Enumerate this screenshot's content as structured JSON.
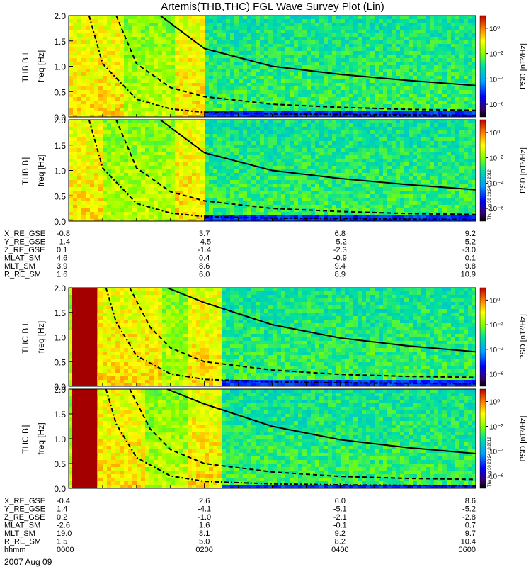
{
  "title": "Artemis(THB,THC) FGL Wave Survey Plot (Lin)",
  "date_label": "2007 Aug 09",
  "freq_label": "freq [Hz]",
  "chart_data": [
    {
      "type": "heatmap",
      "panel": "THB B⊥",
      "ylabel": "THB B⊥",
      "ylim": [
        0,
        2.0
      ],
      "yticks": [
        "0.0",
        "0.5",
        "1.0",
        "1.5",
        "2.0"
      ],
      "time_range": [
        "0000",
        "0600"
      ],
      "colorbar": {
        "label": "PSD [nT²/Hz]",
        "scale": "log",
        "range": [
          1e-06,
          10
        ],
        "ticks": [
          "10⁰",
          "10⁻²",
          "10⁻⁴",
          "10⁻⁶"
        ]
      },
      "bright_bands_hours": [
        [
          0.0,
          0.8
        ],
        [
          1.55,
          1.95
        ]
      ],
      "dense_data_end_hour": 2.0,
      "solid_curve": {
        "hours": [
          1.35,
          2,
          3,
          4,
          5,
          6
        ],
        "freq": [
          2.0,
          1.35,
          1.0,
          0.84,
          0.72,
          0.62
        ]
      },
      "dashed_curve_upper": {
        "hours": [
          0.7,
          1.0,
          1.5,
          2,
          3,
          4,
          5,
          6
        ],
        "freq": [
          2.0,
          1.05,
          0.58,
          0.4,
          0.25,
          0.19,
          0.15,
          0.13
        ]
      },
      "dashdot_curve_lower": {
        "hours": [
          0.3,
          0.5,
          1.0,
          1.5,
          2,
          3,
          4,
          5,
          6
        ],
        "freq": [
          2.0,
          1.05,
          0.35,
          0.16,
          0.09,
          0.06,
          0.05,
          0.04,
          0.03
        ]
      }
    },
    {
      "type": "heatmap",
      "panel": "THB B∥",
      "ylabel": "THB B∥",
      "ylim": [
        0,
        2.0
      ],
      "yticks": [
        "0.0",
        "0.5",
        "1.0",
        "1.5",
        "2.0"
      ],
      "time_range": [
        "0000",
        "0600"
      ],
      "colorbar": {
        "label": "PSD [nT²/Hz]",
        "scale": "log",
        "range": [
          1e-06,
          10
        ],
        "ticks": [
          "10⁰",
          "10⁻²",
          "10⁻⁴",
          "10⁻⁶"
        ]
      },
      "timestamp": "Thu Aug 30 23:24:15 2012",
      "bright_bands_hours": [
        [
          0.0,
          0.5
        ],
        [
          1.55,
          1.95
        ]
      ],
      "dense_data_end_hour": 2.0,
      "solid_curve": {
        "hours": [
          1.35,
          2,
          3,
          4,
          5,
          6
        ],
        "freq": [
          2.0,
          1.35,
          1.0,
          0.84,
          0.72,
          0.62
        ]
      },
      "dashed_curve_upper": {
        "hours": [
          0.7,
          1.0,
          1.5,
          2,
          3,
          4,
          5,
          6
        ],
        "freq": [
          2.0,
          1.05,
          0.58,
          0.4,
          0.25,
          0.19,
          0.15,
          0.13
        ]
      },
      "dashdot_curve_lower": {
        "hours": [
          0.3,
          0.5,
          1.0,
          1.5,
          2,
          3,
          4,
          5,
          6
        ],
        "freq": [
          2.0,
          1.05,
          0.35,
          0.16,
          0.09,
          0.06,
          0.05,
          0.04,
          0.03
        ]
      }
    },
    {
      "type": "heatmap",
      "panel": "THC B⊥",
      "ylabel": "THC B⊥",
      "ylim": [
        0,
        2.0
      ],
      "yticks": [
        "0.0",
        "0.5",
        "1.0",
        "1.5",
        "2.0"
      ],
      "time_range": [
        "0000",
        "0600"
      ],
      "colorbar": {
        "label": "PSD [nT²/Hz]",
        "scale": "log",
        "range": [
          1e-06,
          10
        ],
        "ticks": [
          "10⁰",
          "10⁻²",
          "10⁻⁴",
          "10⁻⁶"
        ]
      },
      "saturated_band_hours": [
        0.05,
        0.42
      ],
      "bright_bands_hours": [
        [
          0.42,
          1.35
        ],
        [
          1.7,
          2.25
        ]
      ],
      "dense_data_end_hour": 2.25,
      "solid_curve": {
        "hours": [
          1.45,
          2,
          3,
          4,
          5,
          6
        ],
        "freq": [
          2.0,
          1.7,
          1.25,
          0.98,
          0.82,
          0.7
        ]
      },
      "dashed_curve_upper": {
        "hours": [
          0.9,
          1.2,
          1.5,
          2,
          3,
          4,
          5,
          6
        ],
        "freq": [
          2.0,
          1.2,
          0.78,
          0.5,
          0.33,
          0.24,
          0.2,
          0.18
        ]
      },
      "dashdot_curve_lower": {
        "hours": [
          0.55,
          0.7,
          1.0,
          1.5,
          2,
          3,
          4,
          5,
          6
        ],
        "freq": [
          2.0,
          1.3,
          0.62,
          0.25,
          0.14,
          0.09,
          0.07,
          0.06,
          0.05
        ]
      }
    },
    {
      "type": "heatmap",
      "panel": "THC B∥",
      "ylabel": "THC B∥",
      "ylim": [
        0,
        2.0
      ],
      "yticks": [
        "0.0",
        "0.5",
        "1.0",
        "1.5",
        "2.0"
      ],
      "time_range": [
        "0000",
        "0600"
      ],
      "colorbar": {
        "label": "PSD [nT²/Hz]",
        "scale": "log",
        "range": [
          1e-06,
          10
        ],
        "ticks": [
          "10⁰",
          "10⁻²",
          "10⁻⁴",
          "10⁻⁶"
        ]
      },
      "timestamp": "Thu Aug 30 23:24:18 2012",
      "saturated_band_hours": [
        0.05,
        0.42
      ],
      "bright_bands_hours": [
        [
          0.42,
          1.1
        ],
        [
          1.7,
          2.25
        ]
      ],
      "dense_data_end_hour": 2.25,
      "solid_curve": {
        "hours": [
          1.45,
          2,
          3,
          4,
          5,
          6
        ],
        "freq": [
          2.0,
          1.7,
          1.25,
          0.98,
          0.82,
          0.7
        ]
      },
      "dashed_curve_upper": {
        "hours": [
          0.9,
          1.2,
          1.5,
          2,
          3,
          4,
          5,
          6
        ],
        "freq": [
          2.0,
          1.2,
          0.78,
          0.5,
          0.33,
          0.24,
          0.2,
          0.18
        ]
      },
      "dashdot_curve_lower": {
        "hours": [
          0.55,
          0.7,
          1.0,
          1.5,
          2,
          3,
          4,
          5,
          6
        ],
        "freq": [
          2.0,
          1.3,
          0.62,
          0.25,
          0.14,
          0.09,
          0.07,
          0.06,
          0.05
        ]
      }
    }
  ],
  "ephemeris_thb": {
    "labels": [
      "X_RE_GSE",
      "Y_RE_GSE",
      "Z_RE_GSE",
      "MLAT_SM",
      "MLT_SM",
      "R_RE_SM"
    ],
    "columns": [
      [
        "-0.8",
        "-1.4",
        "0.1",
        "4.6",
        "3.9",
        "1.6"
      ],
      [
        "3.7",
        "-4.5",
        "-1.4",
        "0.4",
        "8.6",
        "6.0"
      ],
      [
        "6.8",
        "-5.2",
        "-2.3",
        "-0.9",
        "9.4",
        "8.9"
      ],
      [
        "9.2",
        "-5.2",
        "-3.0",
        "0.1",
        "9.8",
        "10.9"
      ]
    ]
  },
  "ephemeris_thc": {
    "labels": [
      "X_RE_GSE",
      "Y_RE_GSE",
      "Z_RE_GSE",
      "MLAT_SM",
      "MLT_SM",
      "R_RE_SM",
      "hhmm"
    ],
    "columns": [
      [
        "-0.4",
        "1.4",
        "0.2",
        "-2.6",
        "19.0",
        "1.5",
        "0000"
      ],
      [
        "2.6",
        "-4.1",
        "-1.0",
        "1.6",
        "8.1",
        "5.0",
        "0200"
      ],
      [
        "6.0",
        "-5.1",
        "-2.1",
        "-0.1",
        "9.2",
        "8.2",
        "0400"
      ],
      [
        "8.6",
        "-5.2",
        "-2.8",
        "0.7",
        "9.7",
        "10.4",
        "0600"
      ]
    ]
  }
}
